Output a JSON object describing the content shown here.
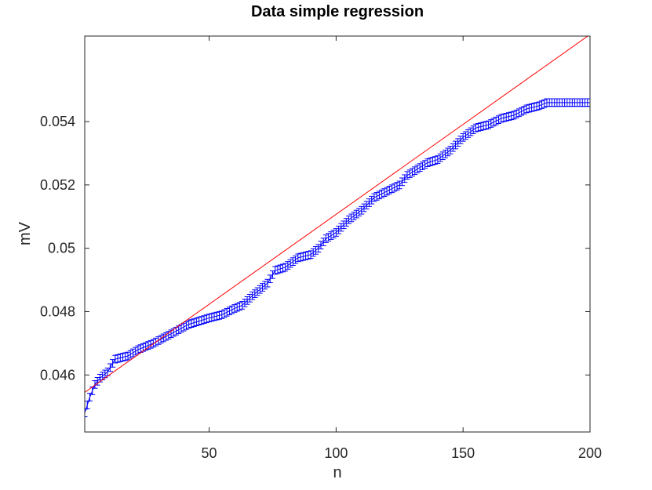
{
  "chart_data": {
    "type": "scatter",
    "title": "Data simple regression",
    "xlabel": "n",
    "ylabel": "mV",
    "xlim": [
      1,
      200
    ],
    "ylim": [
      0.0442,
      0.0567
    ],
    "xticks": [
      50,
      100,
      150,
      200
    ],
    "xtick_labels": [
      "50",
      "100",
      "150",
      "200"
    ],
    "yticks": [
      0.046,
      0.048,
      0.05,
      0.052,
      0.054
    ],
    "ytick_labels": [
      "0.046",
      "0.048",
      "0.05",
      "0.052",
      "0.054"
    ],
    "grid": false,
    "error_bar_halfwidth": 0.00012,
    "series": [
      {
        "kind": "errorbar",
        "color": "#0000ff",
        "anchors": [
          [
            1,
            0.0448
          ],
          [
            3,
            0.0453
          ],
          [
            5,
            0.0457
          ],
          [
            7,
            0.0459
          ],
          [
            10,
            0.0461
          ],
          [
            13,
            0.0465
          ],
          [
            18,
            0.0466
          ],
          [
            22,
            0.0468
          ],
          [
            28,
            0.047
          ],
          [
            35,
            0.0473
          ],
          [
            42,
            0.0476
          ],
          [
            50,
            0.0478
          ],
          [
            55,
            0.0479
          ],
          [
            60,
            0.0481
          ],
          [
            63,
            0.0482
          ],
          [
            67,
            0.0485
          ],
          [
            70,
            0.0487
          ],
          [
            73,
            0.0489
          ],
          [
            76,
            0.0493
          ],
          [
            80,
            0.0494
          ],
          [
            85,
            0.0497
          ],
          [
            90,
            0.0498
          ],
          [
            93,
            0.05
          ],
          [
            96,
            0.0503
          ],
          [
            100,
            0.0505
          ],
          [
            105,
            0.0509
          ],
          [
            110,
            0.0512
          ],
          [
            115,
            0.0516
          ],
          [
            120,
            0.0518
          ],
          [
            125,
            0.052
          ],
          [
            128,
            0.0523
          ],
          [
            132,
            0.0525
          ],
          [
            136,
            0.0527
          ],
          [
            140,
            0.0528
          ],
          [
            145,
            0.0531
          ],
          [
            150,
            0.0535
          ],
          [
            155,
            0.0538
          ],
          [
            160,
            0.0539
          ],
          [
            165,
            0.0541
          ],
          [
            170,
            0.0542
          ],
          [
            175,
            0.0544
          ],
          [
            180,
            0.0545
          ],
          [
            183,
            0.0546
          ],
          [
            200,
            0.0546
          ]
        ]
      },
      {
        "kind": "line",
        "color": "#ff0000",
        "x": [
          1,
          200
        ],
        "y": [
          0.04545,
          0.05675
        ]
      }
    ]
  }
}
